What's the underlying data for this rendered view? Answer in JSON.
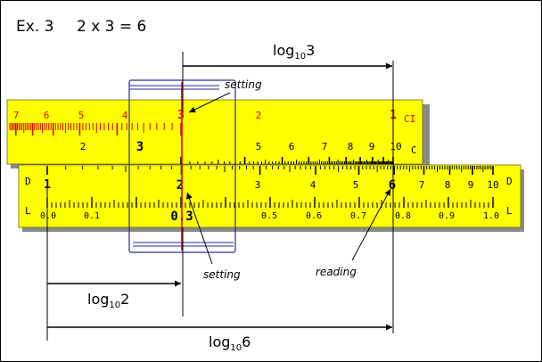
{
  "title": {
    "example": "Ex. 3",
    "equation": "2 x 3 = 6"
  },
  "colors": {
    "rule": "#ffff00",
    "red": "#e00000",
    "cursor_line": "#2a2a9a",
    "ink": "#000000",
    "shadow": "#8a8a8a"
  },
  "scales": {
    "ci": {
      "name": "CI",
      "labels": [
        "7",
        "6",
        "5",
        "4",
        "3",
        "2",
        "1"
      ]
    },
    "c": {
      "name": "C",
      "labels": [
        "2",
        "3",
        "5",
        "6",
        "7",
        "8",
        "9",
        "10"
      ]
    },
    "d": {
      "name": "D",
      "labels": [
        "1",
        "2",
        "3",
        "4",
        "5",
        "6",
        "7",
        "8",
        "9",
        "10"
      ]
    },
    "l": {
      "name": "L",
      "labels": [
        "0.0",
        "0.1",
        "0.3",
        "0.5",
        "0.6",
        "0.7",
        "0.8",
        "0.9",
        "1.0"
      ]
    }
  },
  "annotations": {
    "setting_top": "setting",
    "setting_bottom": "setting",
    "reading": "reading",
    "log3": {
      "base": "log",
      "sub": "10",
      "arg": "3"
    },
    "log2": {
      "base": "log",
      "sub": "10",
      "arg": "2"
    },
    "log6": {
      "base": "log",
      "sub": "10",
      "arg": "6"
    }
  }
}
